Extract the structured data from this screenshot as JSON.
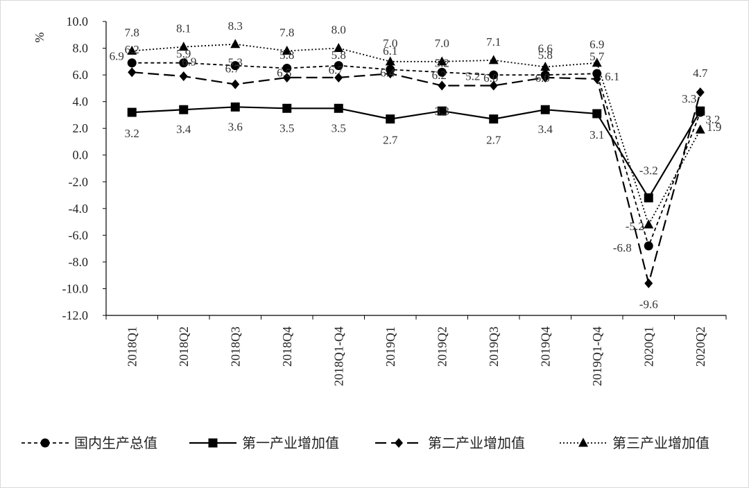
{
  "chart_data": {
    "type": "line",
    "ylabel": "%",
    "ylim": [
      -12,
      10
    ],
    "ytick_step": 2,
    "ytick_labels": [
      "10.0",
      "8.0",
      "6.0",
      "4.0",
      "2.0",
      "0.0",
      "-2.0",
      "-4.0",
      "-6.0",
      "-8.0",
      "-10.0",
      "-12.0"
    ],
    "categories": [
      "2018Q1",
      "2018Q2",
      "2018Q3",
      "2018Q4",
      "2018Q1-Q4",
      "2019Q1",
      "2019Q2",
      "2019Q3",
      "2019Q4",
      "2019Q1-Q4",
      "2020Q1",
      "2020Q2"
    ],
    "grid": false,
    "legend_position": "bottom",
    "series": [
      {
        "name": "国内生产总值",
        "values": [
          6.9,
          6.9,
          6.7,
          6.5,
          6.7,
          6.4,
          6.2,
          6.0,
          6.0,
          6.1,
          -6.8,
          3.2
        ],
        "labels": [
          "6.9",
          "6.9",
          "6.7",
          "6.5",
          "6.7",
          "6.4",
          "6.2",
          "6.0",
          "6.0",
          "6.1",
          "-6.8",
          "3.2"
        ],
        "marker": "circle",
        "dash": "short-dash",
        "color": "#000000"
      },
      {
        "name": "第一产业增加值",
        "values": [
          3.2,
          3.4,
          3.6,
          3.5,
          3.5,
          2.7,
          3.3,
          2.7,
          3.4,
          3.1,
          -3.2,
          3.3
        ],
        "labels": [
          "3.2",
          "3.4",
          "3.6",
          "3.5",
          "3.5",
          "2.7",
          "3.3",
          "2.7",
          "3.4",
          "3.1",
          "-3.2",
          "3.3"
        ],
        "marker": "square",
        "dash": "solid",
        "color": "#000000"
      },
      {
        "name": "第二产业增加值",
        "values": [
          6.2,
          5.9,
          5.3,
          5.8,
          5.8,
          6.1,
          5.2,
          5.2,
          5.8,
          5.7,
          -9.6,
          4.7
        ],
        "labels": [
          "6.2",
          "5.9",
          "5.3",
          "5.8",
          "5.8",
          "6.1",
          "5.2",
          "5.2",
          "5.8",
          "5.7",
          "-9.6",
          "4.7"
        ],
        "marker": "diamond",
        "dash": "long-dash",
        "color": "#000000"
      },
      {
        "name": "第三产业增加值",
        "values": [
          7.8,
          8.1,
          8.3,
          7.8,
          8.0,
          7.0,
          7.0,
          7.1,
          6.6,
          6.9,
          -5.2,
          1.9
        ],
        "labels": [
          "7.8",
          "8.1",
          "8.3",
          "7.8",
          "8.0",
          "7.0",
          "7.0",
          "7.1",
          "6.6",
          "6.9",
          "-5.2",
          "1.9"
        ],
        "marker": "triangle",
        "dash": "dotted",
        "color": "#000000"
      }
    ]
  }
}
